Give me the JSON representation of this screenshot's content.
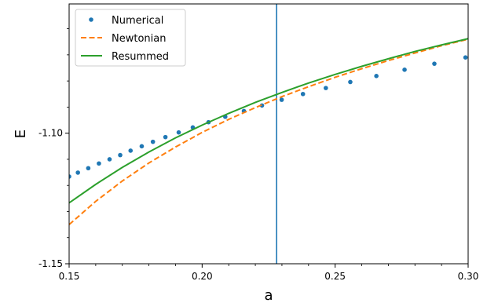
{
  "chart_data": {
    "type": "line",
    "title": "",
    "xlabel": "a",
    "ylabel": "E",
    "xlim": [
      0.15,
      0.3
    ],
    "ylim": [
      -1.15,
      -1.0505
    ],
    "grid": false,
    "legend_position": "upper-left",
    "x_ticks": [
      {
        "value": 0.15,
        "label": "0.15"
      },
      {
        "value": 0.2,
        "label": "0.20"
      },
      {
        "value": 0.25,
        "label": "0.25"
      },
      {
        "value": 0.3,
        "label": "0.30"
      }
    ],
    "y_ticks": [
      {
        "value": -1.1,
        "label": "-1.10"
      },
      {
        "value": -1.15,
        "label": "-1.15"
      }
    ],
    "vertical_line": {
      "x": 0.228,
      "color": "#1f77b4"
    },
    "series": [
      {
        "name": "Numerical",
        "style": "markers",
        "color": "#1f77b4",
        "x": [
          0.15,
          0.1533,
          0.1572,
          0.1612,
          0.1652,
          0.1692,
          0.1731,
          0.1773,
          0.1815,
          0.1862,
          0.1912,
          0.1965,
          0.2024,
          0.2087,
          0.2157,
          0.2225,
          0.2299,
          0.2379,
          0.2465,
          0.2557,
          0.2655,
          0.2761,
          0.2873,
          0.299
        ],
        "y": [
          -1.1166,
          -1.1151,
          -1.1134,
          -1.1116,
          -1.11,
          -1.1084,
          -1.1067,
          -1.105,
          -1.1033,
          -1.1015,
          -1.0997,
          -1.0978,
          -1.0958,
          -1.0937,
          -1.0915,
          -1.0894,
          -1.0872,
          -1.085,
          -1.0827,
          -1.0804,
          -1.0781,
          -1.0757,
          -1.0734,
          -1.071
        ]
      },
      {
        "name": "Newtonian",
        "style": "dashed",
        "color": "#ff7f0e",
        "x": [
          0.15,
          0.16,
          0.17,
          0.18,
          0.19,
          0.2,
          0.21,
          0.22,
          0.23,
          0.24,
          0.25,
          0.26,
          0.27,
          0.28,
          0.29,
          0.3
        ],
        "y": [
          -1.135,
          -1.1261,
          -1.1183,
          -1.1114,
          -1.1053,
          -1.0997,
          -1.0947,
          -1.0902,
          -1.086,
          -1.0822,
          -1.0786,
          -1.0753,
          -1.0722,
          -1.0693,
          -1.0665,
          -1.064
        ]
      },
      {
        "name": "Resummed",
        "style": "solid",
        "color": "#2ca02c",
        "x": [
          0.15,
          0.16,
          0.17,
          0.18,
          0.19,
          0.2,
          0.21,
          0.22,
          0.23,
          0.24,
          0.25,
          0.26,
          0.27,
          0.28,
          0.29,
          0.3
        ],
        "y": [
          -1.1267,
          -1.1196,
          -1.1131,
          -1.1072,
          -1.1018,
          -1.0969,
          -1.0924,
          -1.0882,
          -1.0844,
          -1.0808,
          -1.0775,
          -1.0744,
          -1.0715,
          -1.0687,
          -1.0662,
          -1.0638
        ]
      }
    ]
  }
}
